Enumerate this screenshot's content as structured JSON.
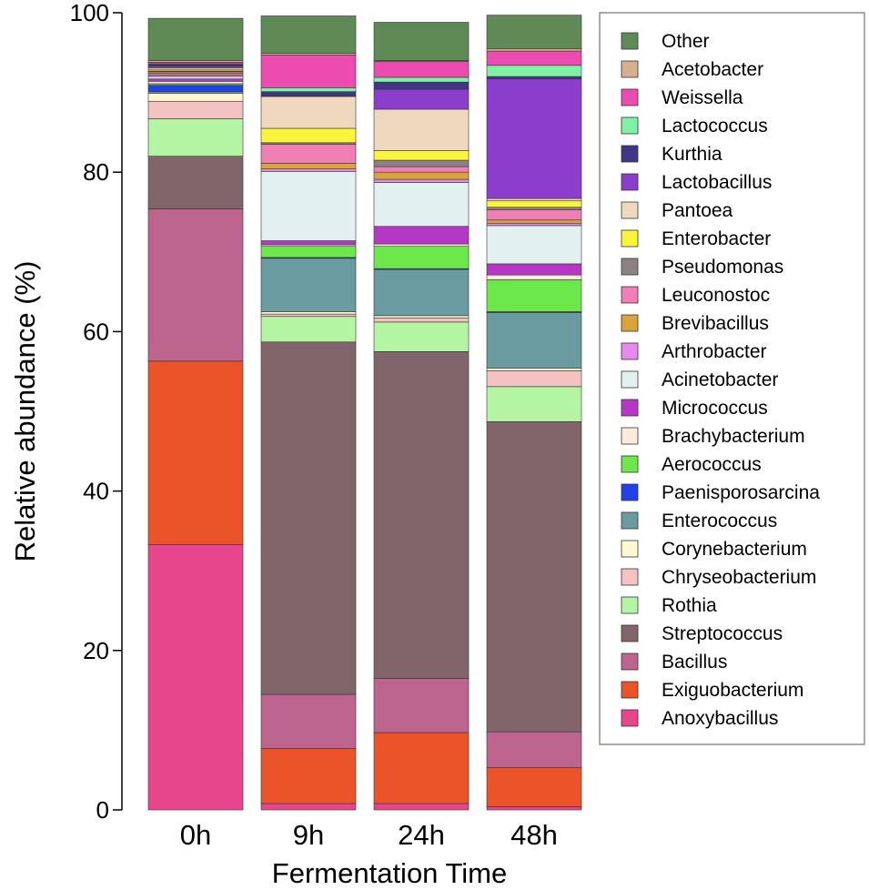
{
  "chart_data": {
    "type": "bar",
    "stacked": true,
    "title": "",
    "xlabel": "Fermentation Time",
    "ylabel": "Relative abundance (%)",
    "ylim": [
      0,
      100
    ],
    "yticks": [
      0,
      20,
      40,
      60,
      80,
      100
    ],
    "grid": false,
    "legend_position": "right",
    "categories": [
      "0h",
      "9h",
      "24h",
      "48h"
    ],
    "series": [
      {
        "name": "Anoxybacillus",
        "color": "#E8468C",
        "values": [
          33.3,
          0.8,
          0.8,
          0.4
        ]
      },
      {
        "name": "Exiguobacterium",
        "color": "#EA5428",
        "values": [
          23.0,
          6.9,
          8.9,
          4.9
        ]
      },
      {
        "name": "Bacillus",
        "color": "#BD658F",
        "values": [
          19.1,
          6.8,
          6.8,
          4.5
        ]
      },
      {
        "name": "Streptococcus",
        "color": "#82656A",
        "values": [
          6.6,
          44.2,
          41.0,
          38.9
        ]
      },
      {
        "name": "Rothia",
        "color": "#B3F5A3",
        "values": [
          4.7,
          3.2,
          3.7,
          4.4
        ]
      },
      {
        "name": "Chryseobacterium",
        "color": "#F5C2C2",
        "values": [
          2.2,
          0.3,
          0.5,
          2.0
        ]
      },
      {
        "name": "Corynebacterium",
        "color": "#FDF8D0",
        "values": [
          1.0,
          0.3,
          0.3,
          0.3
        ]
      },
      {
        "name": "Enterococcus",
        "color": "#6A9BA0",
        "values": [
          0.2,
          6.7,
          5.8,
          7.0
        ]
      },
      {
        "name": "Paenisporosarcina",
        "color": "#1F43E8",
        "values": [
          0.8,
          0.1,
          0.1,
          0.1
        ]
      },
      {
        "name": "Aerococcus",
        "color": "#6CE84A",
        "values": [
          0.2,
          1.4,
          2.8,
          4.0
        ]
      },
      {
        "name": "Brachybacterium",
        "color": "#FAEBDA",
        "values": [
          0.3,
          0.2,
          0.3,
          0.6
        ]
      },
      {
        "name": "Micrococcus",
        "color": "#B636C6",
        "values": [
          0.3,
          0.5,
          2.2,
          1.4
        ]
      },
      {
        "name": "Acinetobacter",
        "color": "#E3F0F0",
        "values": [
          0.3,
          8.7,
          5.5,
          4.8
        ]
      },
      {
        "name": "Arthrobacter",
        "color": "#E68AEF",
        "values": [
          0.2,
          0.3,
          0.4,
          0.3
        ]
      },
      {
        "name": "Brevibacillus",
        "color": "#D9A43A",
        "values": [
          0.2,
          0.7,
          0.9,
          0.4
        ]
      },
      {
        "name": "Leuconostoc",
        "color": "#F07FB6",
        "values": [
          0.2,
          2.4,
          0.7,
          1.3
        ]
      },
      {
        "name": "Pseudomonas",
        "color": "#8C8284",
        "values": [
          0.1,
          0.2,
          0.8,
          0.3
        ]
      },
      {
        "name": "Enterobacter",
        "color": "#FAF53A",
        "values": [
          0.2,
          1.8,
          1.2,
          0.8
        ]
      },
      {
        "name": "Pantoea",
        "color": "#F0D8BE",
        "values": [
          0.2,
          4.0,
          5.2,
          0.3
        ]
      },
      {
        "name": "Lactobacillus",
        "color": "#8B3DCB",
        "values": [
          0.2,
          0.1,
          2.5,
          15.0
        ]
      },
      {
        "name": "Kurthia",
        "color": "#3F3686",
        "values": [
          0.2,
          0.5,
          0.9,
          0.3
        ]
      },
      {
        "name": "Lactococcus",
        "color": "#7FF2A6",
        "values": [
          0.1,
          0.5,
          0.6,
          1.4
        ]
      },
      {
        "name": "Weissella",
        "color": "#EC4BB0",
        "values": [
          0.2,
          4.1,
          2.0,
          1.8
        ]
      },
      {
        "name": "Acetobacter",
        "color": "#D7AF8C",
        "values": [
          0.2,
          0.2,
          0.1,
          0.3
        ]
      },
      {
        "name": "Other",
        "color": "#5F8A55",
        "values": [
          5.3,
          4.7,
          4.8,
          4.2
        ]
      }
    ],
    "legend_order": [
      "Other",
      "Acetobacter",
      "Weissella",
      "Lactococcus",
      "Kurthia",
      "Lactobacillus",
      "Pantoea",
      "Enterobacter",
      "Pseudomonas",
      "Leuconostoc",
      "Brevibacillus",
      "Arthrobacter",
      "Acinetobacter",
      "Micrococcus",
      "Brachybacterium",
      "Aerococcus",
      "Paenisporosarcina",
      "Enterococcus",
      "Corynebacterium",
      "Chryseobacterium",
      "Rothia",
      "Streptococcus",
      "Bacillus",
      "Exiguobacterium",
      "Anoxybacillus"
    ]
  }
}
